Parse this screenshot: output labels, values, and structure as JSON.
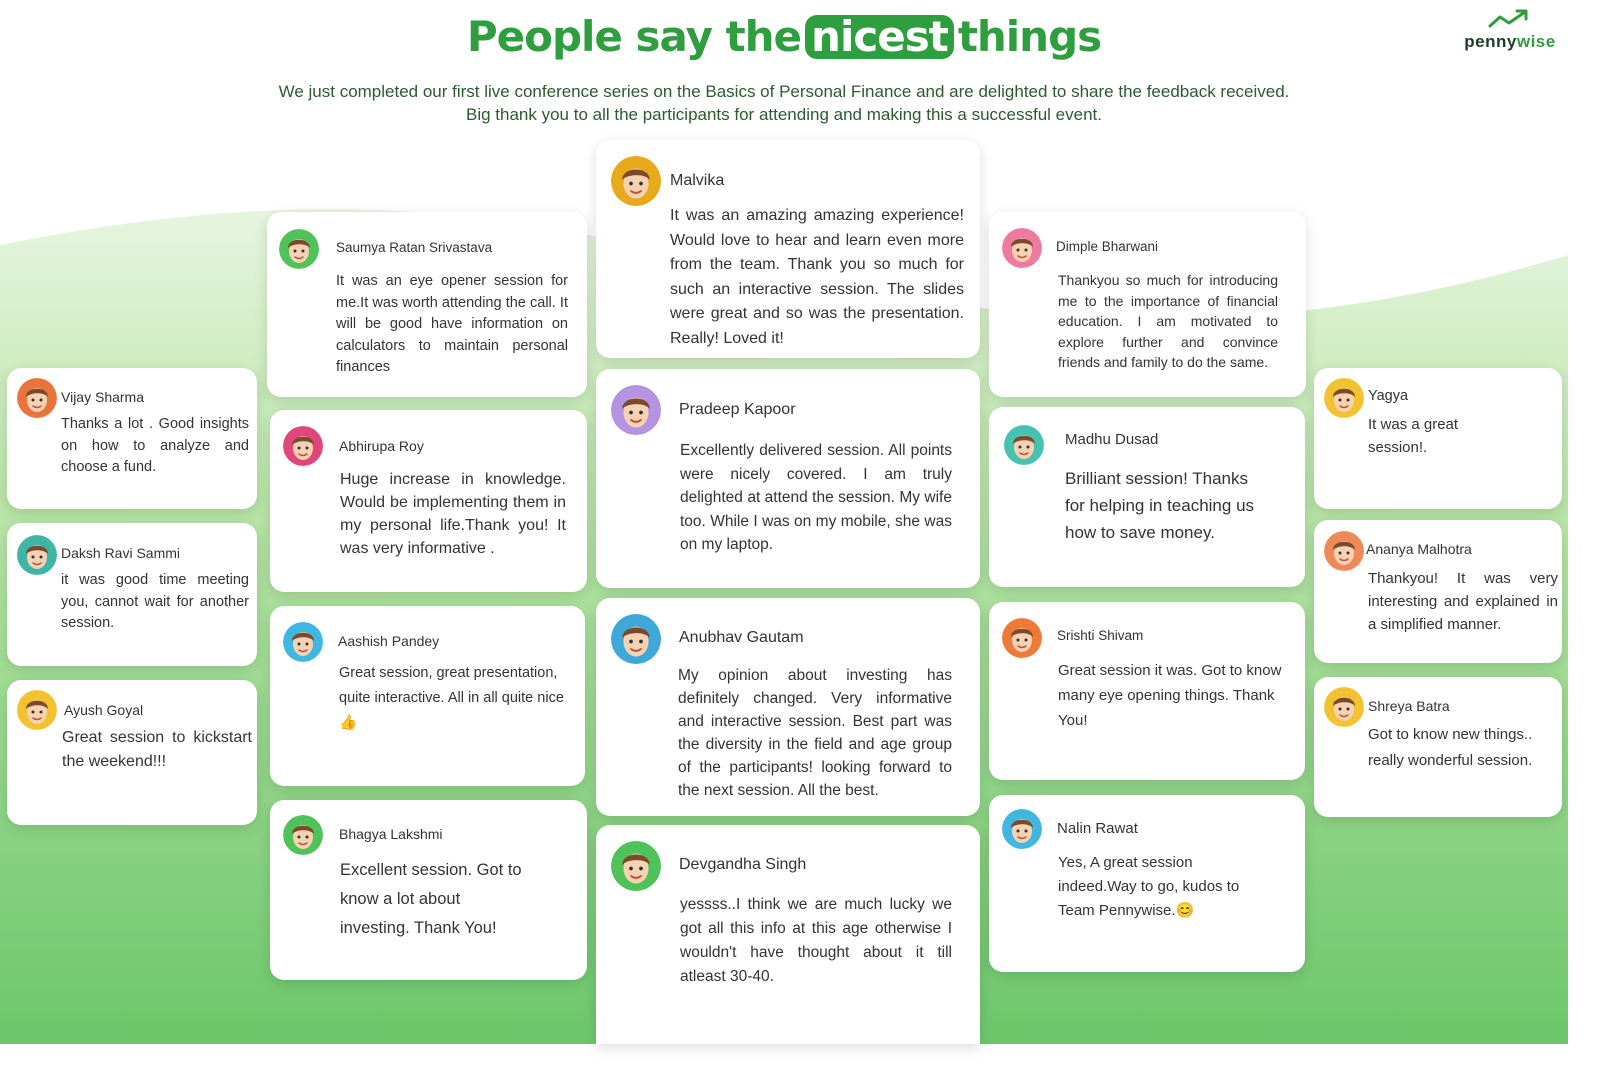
{
  "header": {
    "title_pre": "People say the",
    "title_highlight": "nicest",
    "title_post": "things",
    "subtitle_line1": "We just completed our first live conference series on the Basics of Personal Finance and are delighted to share the feedback received.",
    "subtitle_line2": "Big thank you to all the participants for attending and making this a successful event."
  },
  "logo": {
    "text_part1": "penny",
    "text_part2": "wise",
    "icon": "trend-arrow-icon"
  },
  "colors": {
    "brand_green": "#2f9e3e",
    "wave_light": "#e9f6e4",
    "wave_mid": "#9fdc8b",
    "wave_dark": "#72c96a"
  },
  "testimonials": [
    {
      "name": "Vijay Sharma",
      "text": "Thanks a lot . Good insights on how to analyze and choose a fund.",
      "avatar_color": "#e8743b"
    },
    {
      "name": "Daksh Ravi Sammi",
      "text": "it was good time meeting you, cannot wait for another session.",
      "avatar_color": "#3fb5a6"
    },
    {
      "name": "Ayush Goyal",
      "text": "Great session to kickstart the weekend!!!",
      "avatar_color": "#f2c230"
    },
    {
      "name": "Saumya Ratan Srivastava",
      "text": "It was an eye opener session for me.It was worth attending the call. It will be good have information on calculators to maintain personal finances",
      "avatar_color": "#4fc35a"
    },
    {
      "name": "Abhirupa Roy",
      "text": "Huge increase in knowledge. Would be implementing them in my personal life.Thank you! It was very informative .",
      "avatar_color": "#e0457b"
    },
    {
      "name": "Aashish Pandey",
      "text": "Great session, great presentation, quite interactive. All in all quite nice 👍",
      "avatar_color": "#3fb7e0"
    },
    {
      "name": "Bhagya Lakshmi",
      "text": "Excellent session. Got to know a lot about investing. Thank You!",
      "avatar_color": "#4fc35a"
    },
    {
      "name": "Malvika",
      "text": "It was an amazing amazing experience! Would love to hear and learn even more from the team. Thank you so much for such an interactive session. The slides were great and so was the presentation. Really! Loved it!",
      "avatar_color": "#e8a91c"
    },
    {
      "name": "Pradeep Kapoor",
      "text": "Excellently delivered session. All points were nicely covered. I am truly delighted at attend the session. My wife too. While I was on my mobile, she was on my laptop.",
      "avatar_color": "#b493e0"
    },
    {
      "name": "Anubhav Gautam",
      "text": "My opinion about investing has definitely changed. Very informative and interactive session. Best part was the diversity in the field and age group of the participants! looking forward to the next session. All the best.",
      "avatar_color": "#3ea9d8"
    },
    {
      "name": "Devgandha Singh",
      "text": "yessss..I think we are much lucky we got all this info at this age otherwise I wouldn't have thought about it till atleast 30-40.",
      "avatar_color": "#4fc35a"
    },
    {
      "name": "Dimple Bharwani",
      "text": "Thankyou so much for introducing me to the importance of financial education. I am motivated to explore further and convince friends and family to do the same.",
      "avatar_color": "#ef7aa0"
    },
    {
      "name": "Madhu Dusad",
      "text": "Brilliant session! Thanks for helping in teaching us how to save money.",
      "avatar_color": "#45c2b0"
    },
    {
      "name": "Srishti Shivam",
      "text": "Great session it was. Got to know many eye opening things. Thank You!",
      "avatar_color": "#ee7a3a"
    },
    {
      "name": "Nalin Rawat",
      "text": "Yes, A great session indeed.Way to go, kudos to Team Pennywise.😊",
      "avatar_color": "#3fb7e0"
    },
    {
      "name": "Yagya",
      "text": "It was a great session!.",
      "avatar_color": "#f2c230"
    },
    {
      "name": "Ananya Malhotra",
      "text": "Thankyou! It was very interesting and explained in a simplified manner.",
      "avatar_color": "#ee8a5a"
    },
    {
      "name": "Shreya Batra",
      "text": "Got to know new things.. really wonderful session.",
      "avatar_color": "#f2c230"
    }
  ]
}
